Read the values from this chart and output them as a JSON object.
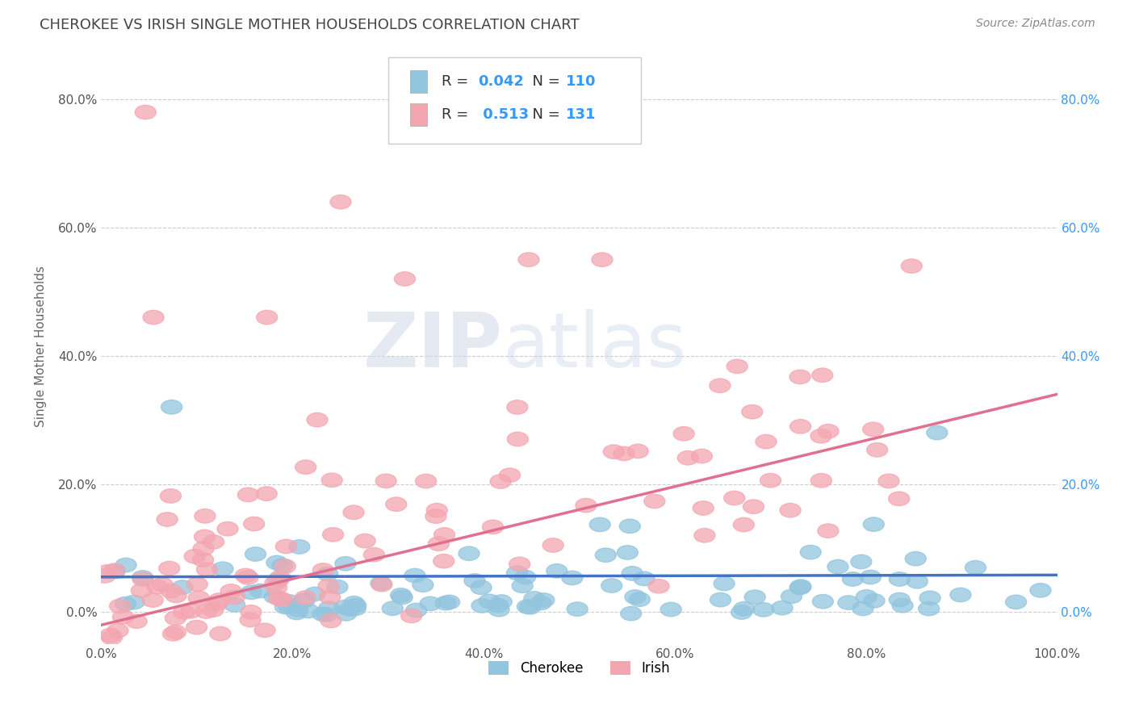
{
  "title": "CHEROKEE VS IRISH SINGLE MOTHER HOUSEHOLDS CORRELATION CHART",
  "source_text": "Source: ZipAtlas.com",
  "ylabel": "Single Mother Households",
  "xlim": [
    0.0,
    1.0
  ],
  "ylim": [
    -0.05,
    0.88
  ],
  "cherokee_R": 0.042,
  "cherokee_N": 110,
  "irish_R": 0.513,
  "irish_N": 131,
  "cherokee_color": "#92C5DE",
  "irish_color": "#F4A6B0",
  "cherokee_line_color": "#4472C4",
  "irish_line_color": "#E07090",
  "watermark_zip": "ZIP",
  "watermark_atlas": "atlas",
  "legend_num_color": "#3399FF",
  "legend_label_color": "#333333",
  "title_color": "#444444",
  "background_color": "#ffffff",
  "grid_color": "#cccccc",
  "tick_color_left": "#555555",
  "tick_color_right": "#3399FF",
  "x_tick_vals": [
    0.0,
    0.2,
    0.4,
    0.6,
    0.8,
    1.0
  ],
  "y_tick_vals": [
    0.0,
    0.2,
    0.4,
    0.6,
    0.8
  ],
  "cherokee_line_y0": 0.055,
  "cherokee_line_y1": 0.058,
  "irish_line_y0": -0.02,
  "irish_line_y1": 0.34
}
